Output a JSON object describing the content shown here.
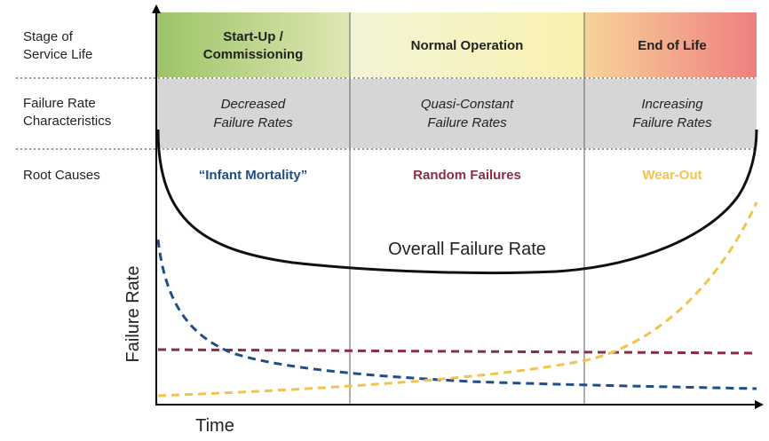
{
  "colors": {
    "startup_band": "#9cc466",
    "normal_band_left": "#f3f4d6",
    "normal_band_right": "#f9f1b0",
    "endoflife_band_left": "#f7d49a",
    "endoflife_band_right": "#ef7f7f",
    "characteristics_band": "#d6d6d6",
    "infant_mortality": "#1f4f86",
    "random_failures": "#8a2e45",
    "wear_out": "#f2c44e",
    "overall": "#111111",
    "text": "#222222"
  },
  "row_labels": {
    "stage": "Stage of\nService Life",
    "characteristics": "Failure Rate\nCharacteristics",
    "root_causes": "Root Causes"
  },
  "stages": {
    "startup": "Start-Up /\nCommissioning",
    "normal": "Normal Operation",
    "end_of_life": "End of Life"
  },
  "characteristics": {
    "decreased": "Decreased\nFailure Rates",
    "quasi_constant": "Quasi-Constant\nFailure Rates",
    "increasing": "Increasing\nFailure Rates"
  },
  "root_causes": {
    "infant_mortality": "“Infant Mortality”",
    "random": "Random Failures",
    "wear_out": "Wear-Out"
  },
  "curve_label": "Overall Failure Rate",
  "axes": {
    "y_label": "Failure Rate",
    "x_label": "Time"
  }
}
